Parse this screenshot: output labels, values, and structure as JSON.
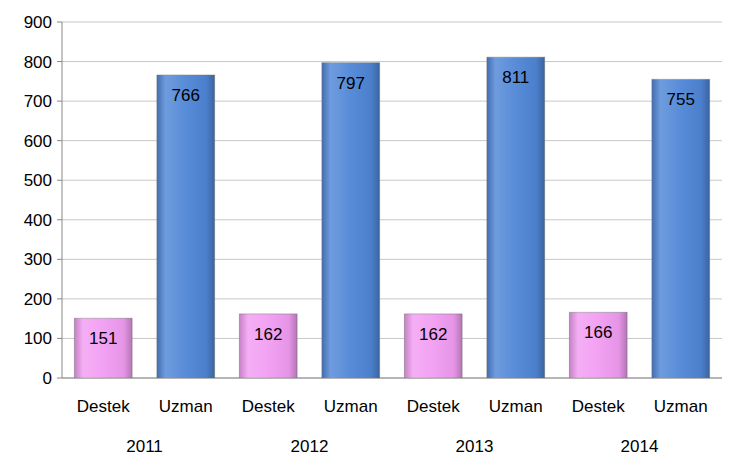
{
  "chart_data": {
    "type": "bar",
    "categories": [
      "2011",
      "2012",
      "2013",
      "2014"
    ],
    "series": [
      {
        "name": "Destek",
        "color": "#f29df2",
        "values": [
          151,
          162,
          162,
          166
        ]
      },
      {
        "name": "Uzman",
        "color": "#4f86d6",
        "values": [
          766,
          797,
          811,
          755
        ]
      }
    ],
    "ylim": [
      0,
      900
    ],
    "yticks": [
      0,
      100,
      200,
      300,
      400,
      500,
      600,
      700,
      800,
      900
    ],
    "grid": true,
    "data_labels": true
  }
}
